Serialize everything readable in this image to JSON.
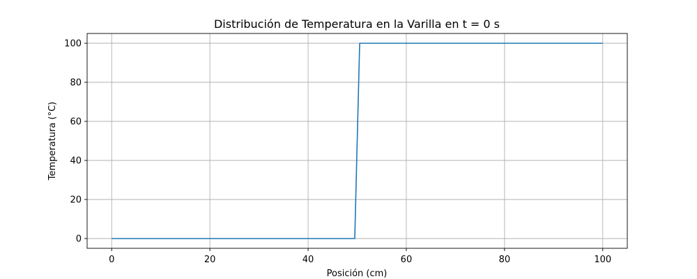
{
  "chart_data": {
    "type": "line",
    "title": "Distribución de Temperatura en la Varilla en t = 0 s",
    "xlabel": "Posición (cm)",
    "ylabel": "Temperatura (°C)",
    "xlim": [
      -5,
      105
    ],
    "ylim": [
      -5,
      105
    ],
    "xticks": [
      0,
      20,
      40,
      60,
      80,
      100
    ],
    "yticks": [
      0,
      20,
      40,
      60,
      80,
      100
    ],
    "grid": true,
    "series": [
      {
        "color": "#1f77b4",
        "x": [
          0,
          49.5,
          50.5,
          100
        ],
        "y": [
          0,
          0,
          100,
          100
        ]
      }
    ]
  }
}
